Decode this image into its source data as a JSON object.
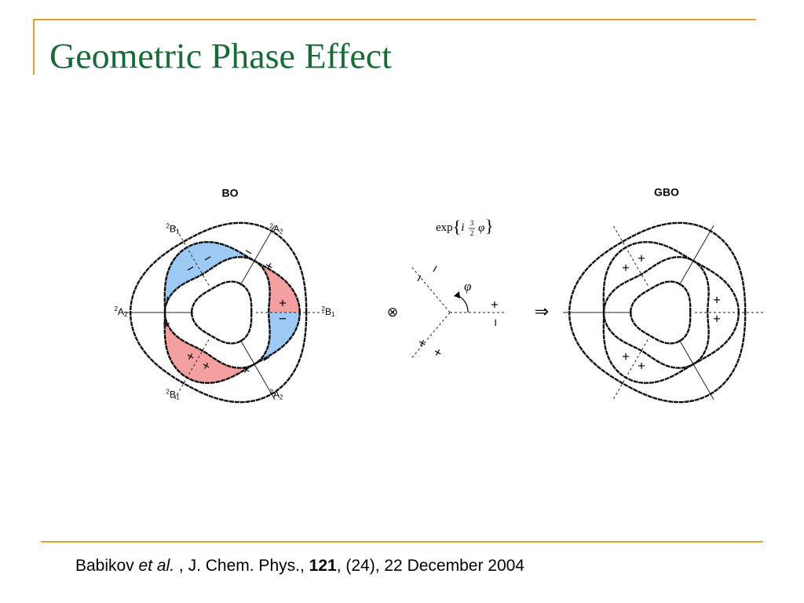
{
  "title": "Geometric Phase Effect",
  "bo": {
    "label": "BO",
    "states": [
      {
        "sup": "2",
        "base": "A",
        "sub": "2"
      },
      {
        "sup": "2",
        "base": "B",
        "sub": "1"
      },
      {
        "sup": "2",
        "base": "A",
        "sub": "2"
      },
      {
        "sup": "2",
        "base": "B",
        "sub": "1"
      },
      {
        "sup": "2",
        "base": "B",
        "sub": "1"
      },
      {
        "sup": "2",
        "base": "A",
        "sub": "2"
      }
    ],
    "signs": [
      "−",
      "−",
      "−",
      "+",
      "+",
      "−",
      "−",
      "+",
      "+",
      "+",
      "−",
      "+"
    ]
  },
  "phase": {
    "exp": "exp",
    "open": "{",
    "i": "i",
    "num": "3",
    "den": "2",
    "phi_in": "φ",
    "close": "}",
    "phi": "φ",
    "signs": [
      "−",
      "−",
      "+",
      "+",
      "+",
      "−"
    ]
  },
  "operators": [
    "⊗",
    "⇒"
  ],
  "gbo": {
    "label": "GBO",
    "signs": [
      "+",
      "+",
      "+",
      "+",
      "+",
      "+"
    ]
  },
  "citation": {
    "author": "Babikov ",
    "etal": "et al.",
    "journal": " , J. Chem. Phys., ",
    "volume": "121",
    "rest": ", (24), 22 December 2004"
  }
}
